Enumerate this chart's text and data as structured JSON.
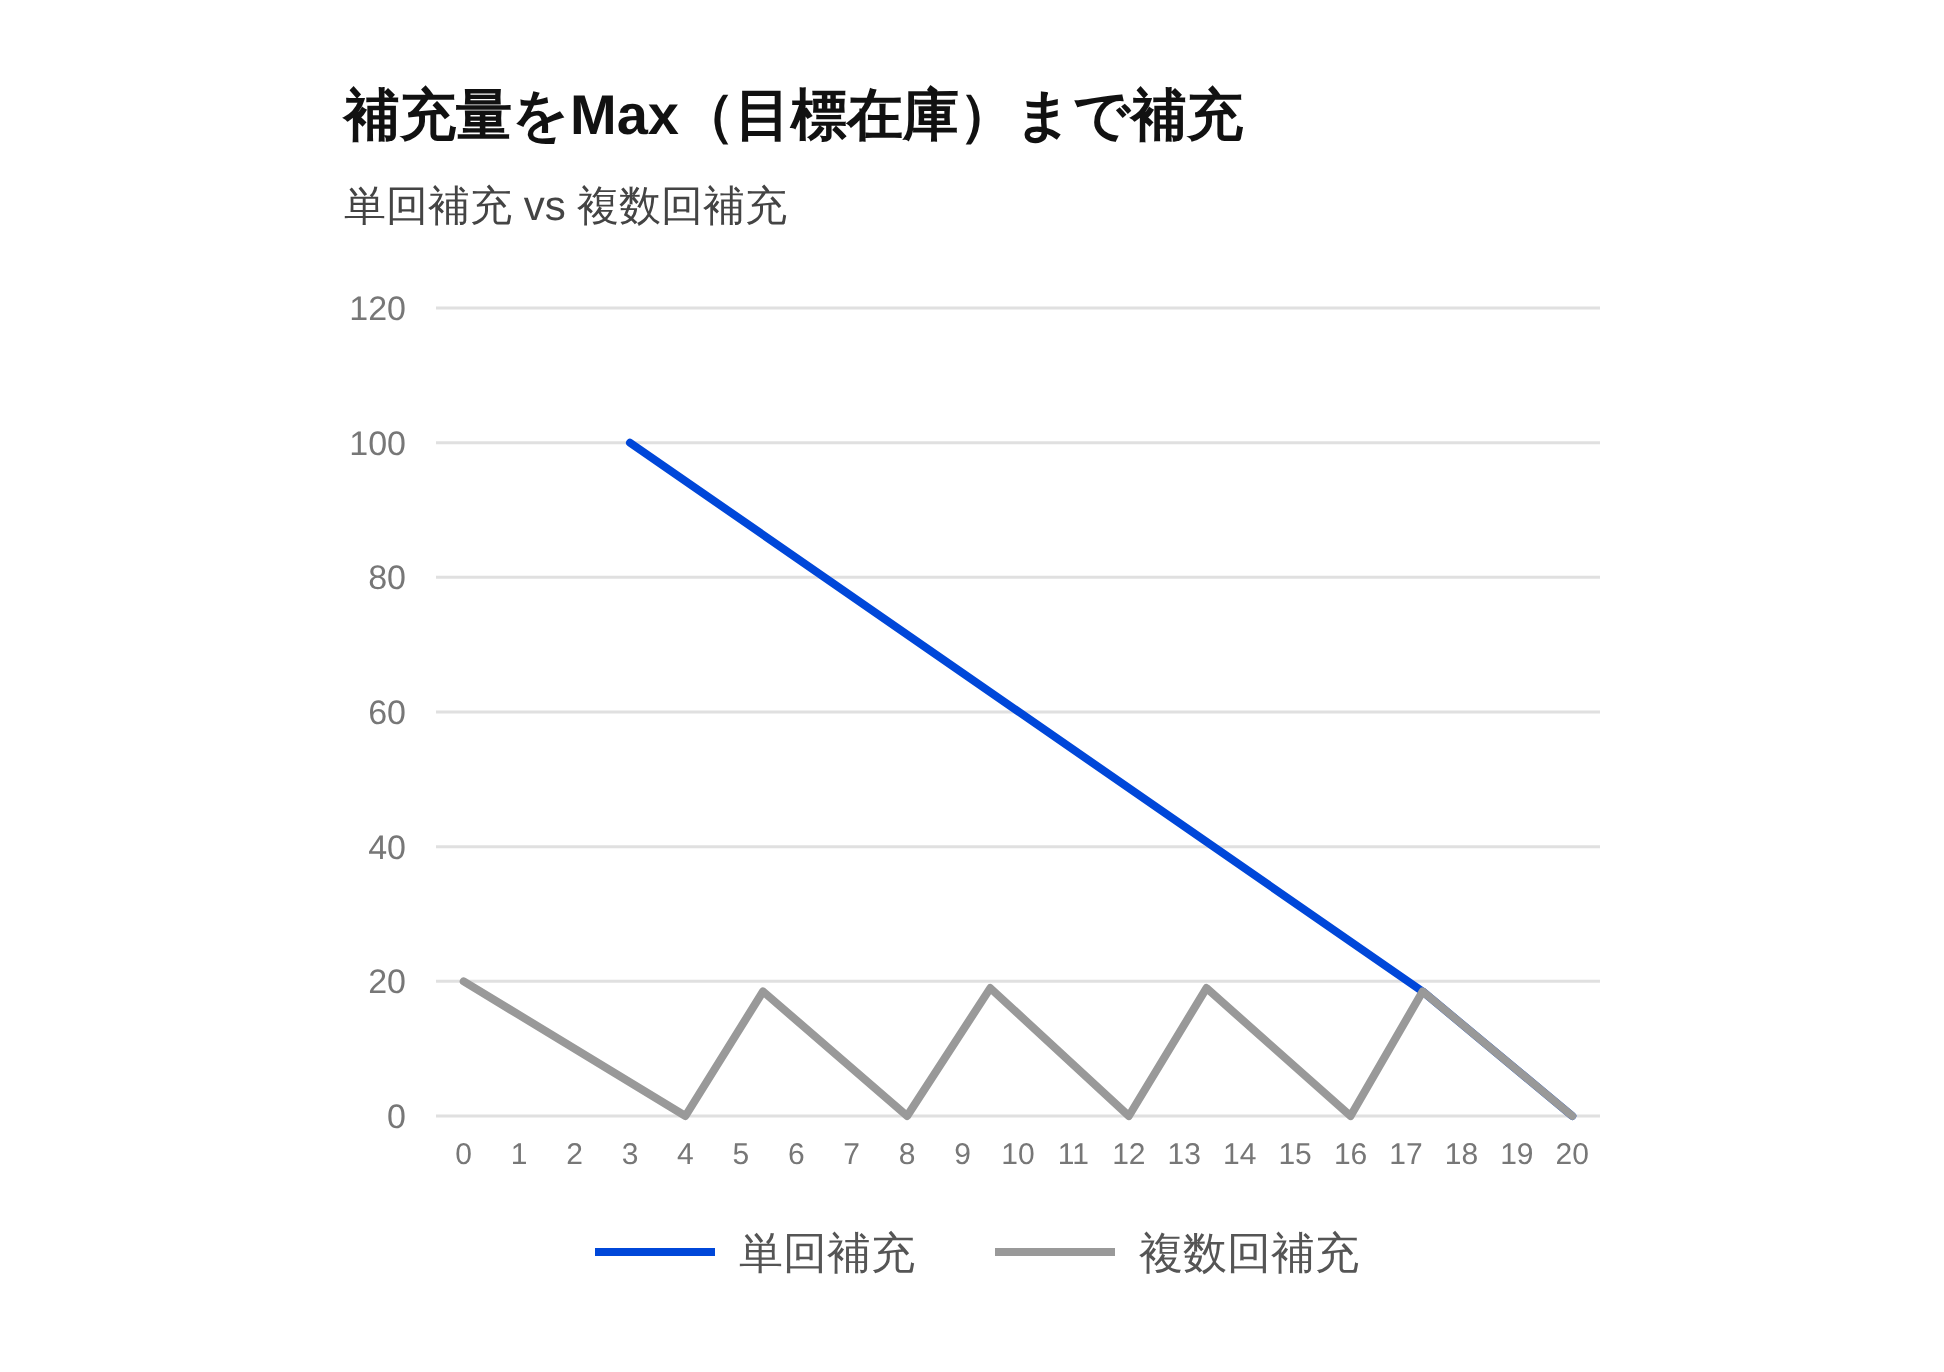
{
  "chart_data": {
    "type": "line",
    "title": "補充量をMax（目標在庫）まで補充",
    "subtitle": "単回補充 vs 複数回補充",
    "xlim": [
      -0.5,
      20.5
    ],
    "xticks": [
      0,
      1,
      2,
      3,
      4,
      5,
      6,
      7,
      8,
      9,
      10,
      11,
      12,
      13,
      14,
      15,
      16,
      17,
      18,
      19,
      20
    ],
    "ylim": [
      0,
      120
    ],
    "yticks": [
      0,
      20,
      40,
      60,
      80,
      100,
      120
    ],
    "grid": "y",
    "legend": "bottom",
    "marker": "none",
    "line_style": "solid",
    "series": [
      {
        "name": "単回補充",
        "color": "#0047d9",
        "x": [
          3,
          17.3,
          20
        ],
        "values": [
          100,
          18.5,
          0
        ]
      },
      {
        "name": "複数回補充",
        "color": "#999999",
        "x": [
          0,
          4,
          5.4,
          8,
          9.5,
          12,
          13.4,
          16,
          17.3,
          20
        ],
        "values": [
          20,
          0,
          18.5,
          0,
          19,
          0,
          19,
          0,
          18.5,
          0
        ]
      }
    ]
  }
}
